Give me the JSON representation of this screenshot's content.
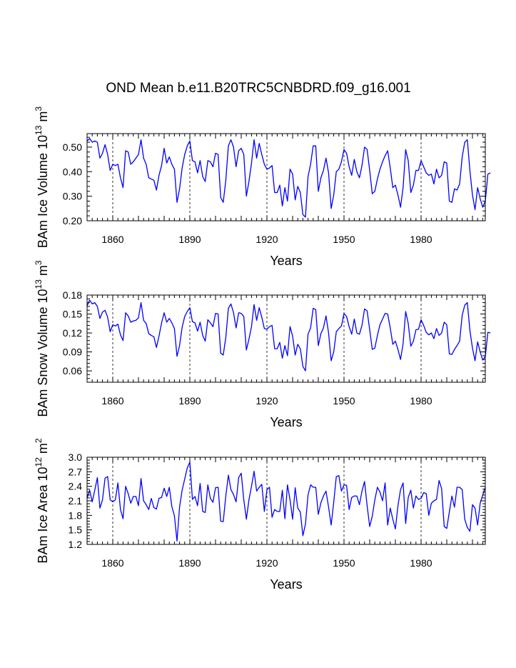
{
  "title": "OND Mean b.e11.B20TRC5CNBDRD.f09_g16.001",
  "line_color": "#0000ff",
  "chart_data": [
    {
      "type": "line",
      "ylabel_main": "BAm Ice Volume 10",
      "ylabel_exp": "13",
      "ylabel_unit": " m",
      "ylabel_unit_exp": "3",
      "xlabel": "Years",
      "xlim": [
        1850,
        2005
      ],
      "ylim": [
        0.2,
        0.555
      ],
      "yticks": [
        0.2,
        0.3,
        0.4,
        0.5
      ],
      "ytick_labels": [
        "0.20",
        "0.30",
        "0.40",
        "0.50"
      ],
      "xticks": [
        1860,
        1890,
        1920,
        1950,
        1980
      ],
      "xtick_labels": [
        "1860",
        "1890",
        "1920",
        "1950",
        "1980"
      ],
      "x_start": 1850,
      "values": [
        0.525,
        0.535,
        0.52,
        0.525,
        0.52,
        0.455,
        0.475,
        0.51,
        0.47,
        0.405,
        0.43,
        0.425,
        0.43,
        0.375,
        0.335,
        0.485,
        0.48,
        0.43,
        0.44,
        0.455,
        0.47,
        0.53,
        0.455,
        0.43,
        0.375,
        0.37,
        0.365,
        0.325,
        0.385,
        0.425,
        0.495,
        0.435,
        0.46,
        0.43,
        0.41,
        0.275,
        0.33,
        0.415,
        0.47,
        0.505,
        0.525,
        0.445,
        0.44,
        0.395,
        0.445,
        0.38,
        0.36,
        0.445,
        0.44,
        0.42,
        0.475,
        0.47,
        0.295,
        0.275,
        0.365,
        0.505,
        0.53,
        0.5,
        0.42,
        0.485,
        0.495,
        0.47,
        0.3,
        0.36,
        0.435,
        0.53,
        0.455,
        0.515,
        0.47,
        0.43,
        0.41,
        0.415,
        0.425,
        0.315,
        0.315,
        0.345,
        0.26,
        0.335,
        0.28,
        0.41,
        0.39,
        0.285,
        0.34,
        0.315,
        0.225,
        0.215,
        0.38,
        0.43,
        0.505,
        0.505,
        0.32,
        0.375,
        0.405,
        0.455,
        0.395,
        0.25,
        0.305,
        0.4,
        0.41,
        0.44,
        0.49,
        0.475,
        0.42,
        0.385,
        0.45,
        0.4,
        0.375,
        0.425,
        0.5,
        0.49,
        0.405,
        0.31,
        0.32,
        0.37,
        0.41,
        0.44,
        0.465,
        0.485,
        0.415,
        0.335,
        0.345,
        0.305,
        0.255,
        0.335,
        0.49,
        0.445,
        0.315,
        0.345,
        0.405,
        0.405,
        0.445,
        0.42,
        0.395,
        0.385,
        0.39,
        0.35,
        0.41,
        0.375,
        0.385,
        0.44,
        0.435,
        0.28,
        0.275,
        0.33,
        0.325,
        0.35,
        0.46,
        0.52,
        0.53,
        0.405,
        0.305,
        0.245,
        0.335,
        0.29,
        0.255,
        0.28,
        0.39,
        0.395
      ]
    },
    {
      "type": "line",
      "ylabel_main": "BAm Snow Volume 10",
      "ylabel_exp": "13",
      "ylabel_unit": " m",
      "ylabel_unit_exp": "3",
      "xlabel": "Years",
      "xlim": [
        1850,
        2005
      ],
      "ylim": [
        0.042,
        0.18
      ],
      "yticks": [
        0.06,
        0.09,
        0.12,
        0.15,
        0.18
      ],
      "ytick_labels": [
        "0.06",
        "0.09",
        "0.12",
        "0.15",
        "0.18"
      ],
      "xticks": [
        1860,
        1890,
        1920,
        1950,
        1980
      ],
      "xtick_labels": [
        "1860",
        "1890",
        "1920",
        "1950",
        "1980"
      ],
      "x_start": 1850,
      "values": [
        0.163,
        0.172,
        0.166,
        0.168,
        0.162,
        0.143,
        0.153,
        0.156,
        0.145,
        0.122,
        0.133,
        0.131,
        0.134,
        0.117,
        0.108,
        0.152,
        0.147,
        0.137,
        0.139,
        0.14,
        0.144,
        0.168,
        0.14,
        0.135,
        0.119,
        0.116,
        0.114,
        0.097,
        0.115,
        0.136,
        0.152,
        0.137,
        0.143,
        0.136,
        0.127,
        0.083,
        0.1,
        0.129,
        0.146,
        0.154,
        0.16,
        0.138,
        0.136,
        0.123,
        0.137,
        0.116,
        0.107,
        0.141,
        0.136,
        0.13,
        0.151,
        0.15,
        0.088,
        0.085,
        0.113,
        0.159,
        0.166,
        0.152,
        0.128,
        0.152,
        0.151,
        0.146,
        0.093,
        0.11,
        0.13,
        0.165,
        0.14,
        0.16,
        0.145,
        0.127,
        0.126,
        0.13,
        0.132,
        0.095,
        0.095,
        0.105,
        0.08,
        0.1,
        0.084,
        0.13,
        0.115,
        0.085,
        0.102,
        0.095,
        0.067,
        0.06,
        0.118,
        0.128,
        0.159,
        0.157,
        0.1,
        0.119,
        0.128,
        0.147,
        0.12,
        0.076,
        0.09,
        0.122,
        0.127,
        0.131,
        0.151,
        0.146,
        0.13,
        0.118,
        0.142,
        0.12,
        0.118,
        0.132,
        0.158,
        0.155,
        0.125,
        0.094,
        0.096,
        0.116,
        0.133,
        0.142,
        0.151,
        0.15,
        0.128,
        0.102,
        0.107,
        0.094,
        0.078,
        0.103,
        0.154,
        0.135,
        0.099,
        0.107,
        0.125,
        0.126,
        0.141,
        0.132,
        0.121,
        0.117,
        0.12,
        0.111,
        0.127,
        0.116,
        0.12,
        0.137,
        0.133,
        0.087,
        0.086,
        0.094,
        0.1,
        0.107,
        0.148,
        0.164,
        0.168,
        0.124,
        0.096,
        0.076,
        0.106,
        0.09,
        0.077,
        0.083,
        0.121,
        0.12
      ]
    },
    {
      "type": "line",
      "ylabel_main": "BAm Ice Area 10",
      "ylabel_exp": "12",
      "ylabel_unit": " m",
      "ylabel_unit_exp": "2",
      "xlabel": "Years",
      "xlim": [
        1850,
        2005
      ],
      "ylim": [
        1.2,
        3.0
      ],
      "yticks": [
        1.2,
        1.5,
        1.8,
        2.1,
        2.4,
        2.7,
        3.0
      ],
      "ytick_labels": [
        "1.2",
        "1.5",
        "1.8",
        "2.1",
        "2.4",
        "2.7",
        "3.0"
      ],
      "xticks": [
        1860,
        1890,
        1920,
        1950,
        1980
      ],
      "xtick_labels": [
        "1860",
        "1890",
        "1920",
        "1950",
        "1980"
      ],
      "x_start": 1850,
      "values": [
        2.15,
        2.32,
        2.08,
        2.32,
        2.58,
        1.95,
        2.12,
        2.57,
        2.6,
        2.12,
        2.08,
        2.12,
        2.47,
        1.92,
        1.73,
        2.4,
        2.25,
        2.05,
        2.19,
        2.19,
        2.0,
        2.56,
        2.1,
        2.02,
        1.92,
        2.15,
        1.96,
        1.93,
        2.15,
        2.17,
        2.36,
        2.19,
        2.38,
        1.98,
        1.79,
        1.27,
        1.97,
        2.32,
        2.55,
        2.78,
        2.9,
        2.13,
        2.19,
        2.0,
        2.46,
        1.88,
        1.86,
        2.43,
        2.15,
        2.07,
        2.37,
        2.38,
        1.68,
        1.67,
        2.2,
        2.63,
        2.33,
        2.23,
        2.08,
        2.58,
        2.67,
        2.12,
        1.72,
        2.12,
        2.4,
        2.71,
        2.3,
        2.38,
        2.44,
        1.88,
        2.33,
        2.38,
        1.76,
        1.92,
        1.88,
        1.88,
        2.32,
        1.73,
        2.43,
        2.12,
        1.72,
        2.37,
        1.95,
        1.87,
        1.38,
        1.62,
        2.22,
        2.43,
        2.38,
        2.38,
        1.82,
        2.06,
        2.2,
        2.3,
        1.97,
        1.6,
        2.07,
        2.6,
        2.62,
        2.3,
        2.43,
        2.42,
        1.92,
        2.17,
        2.2,
        2.2,
        2.02,
        2.3,
        2.5,
        2.0,
        1.57,
        1.78,
        2.12,
        2.38,
        2.28,
        2.1,
        2.47,
        1.6,
        1.95,
        1.72,
        1.52,
        2.0,
        2.33,
        2.47,
        1.63,
        2.17,
        2.32,
        1.95,
        2.2,
        2.13,
        2.15,
        2.27,
        2.25,
        1.8,
        2.05,
        2.1,
        2.13,
        2.52,
        2.35,
        1.57,
        1.53,
        1.87,
        2.2,
        1.97,
        2.38,
        2.38,
        2.33,
        1.72,
        1.55,
        1.47,
        2.02,
        1.95,
        1.6,
        2.05,
        2.22,
        2.38
      ]
    }
  ]
}
